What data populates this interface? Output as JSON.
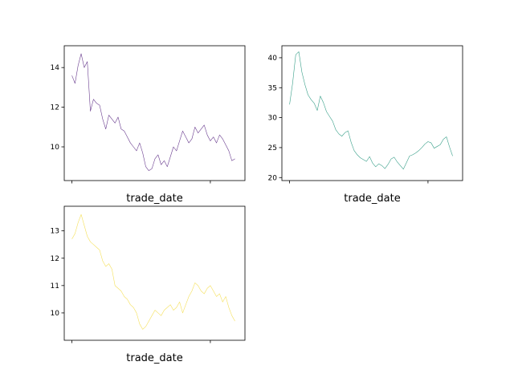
{
  "chart_data": [
    {
      "type": "line",
      "title": "",
      "xlabel": "trade_date",
      "ylabel": "",
      "xlim": [
        -10,
        225
      ],
      "ylim": [
        8.3,
        15.1
      ],
      "yticks": [
        10,
        12,
        14
      ],
      "xticks": [
        0,
        180
      ],
      "xtick_labels": [
        "",
        ""
      ],
      "grid": false,
      "color": "#6a3d8f",
      "series": [
        {
          "x": [
            0,
            4,
            8,
            12,
            16,
            20,
            24,
            28,
            32,
            36,
            40,
            44,
            48,
            52,
            56,
            60,
            64,
            68,
            72,
            76,
            80,
            84,
            88,
            92,
            96,
            100,
            104,
            108,
            112,
            116,
            120,
            124,
            128,
            132,
            136,
            140,
            144,
            148,
            152,
            156,
            160,
            164,
            168,
            172,
            176,
            180,
            184,
            188,
            192,
            196,
            200,
            204,
            208,
            212
          ],
          "y": [
            13.6,
            13.2,
            14.1,
            14.7,
            14.0,
            14.3,
            11.8,
            12.4,
            12.2,
            12.1,
            11.4,
            10.9,
            11.6,
            11.4,
            11.2,
            11.5,
            10.9,
            10.8,
            10.5,
            10.2,
            10.0,
            9.8,
            10.2,
            9.7,
            9.0,
            8.8,
            8.9,
            9.4,
            9.6,
            9.1,
            9.3,
            9.0,
            9.5,
            10.0,
            9.8,
            10.3,
            10.8,
            10.5,
            10.2,
            10.4,
            11.0,
            10.7,
            10.9,
            11.1,
            10.6,
            10.3,
            10.5,
            10.2,
            10.6,
            10.4,
            10.1,
            9.8,
            9.3,
            9.4
          ]
        }
      ]
    },
    {
      "type": "line",
      "title": "",
      "xlabel": "trade_date",
      "ylabel": "",
      "xlim": [
        -10,
        225
      ],
      "ylim": [
        19.5,
        42.0
      ],
      "yticks": [
        20,
        25,
        30,
        35,
        40
      ],
      "xticks": [
        0,
        180
      ],
      "xtick_labels": [
        "",
        ""
      ],
      "grid": false,
      "color": "#3aa08a",
      "series": [
        {
          "x": [
            0,
            4,
            8,
            12,
            16,
            20,
            24,
            28,
            32,
            36,
            40,
            44,
            48,
            52,
            56,
            60,
            64,
            68,
            72,
            76,
            80,
            84,
            88,
            92,
            96,
            100,
            104,
            108,
            112,
            116,
            120,
            124,
            128,
            132,
            136,
            140,
            144,
            148,
            152,
            156,
            160,
            164,
            168,
            172,
            176,
            180,
            184,
            188,
            192,
            196,
            200,
            204,
            208,
            212
          ],
          "y": [
            32.2,
            35.8,
            40.5,
            41.0,
            37.6,
            35.5,
            33.8,
            33.0,
            32.4,
            31.2,
            33.6,
            32.5,
            31.0,
            30.2,
            29.4,
            28.0,
            27.3,
            26.9,
            27.5,
            27.8,
            25.9,
            24.5,
            23.8,
            23.3,
            23.0,
            22.7,
            23.5,
            22.4,
            21.8,
            22.3,
            22.0,
            21.5,
            22.2,
            23.1,
            23.4,
            22.6,
            22.0,
            21.4,
            22.5,
            23.6,
            23.8,
            24.1,
            24.5,
            25.0,
            25.6,
            26.0,
            25.8,
            24.9,
            25.2,
            25.5,
            26.4,
            26.8,
            25.1,
            23.6
          ]
        }
      ]
    },
    {
      "type": "line",
      "title": "",
      "xlabel": "trade_date",
      "ylabel": "",
      "xlim": [
        -10,
        225
      ],
      "ylim": [
        9.0,
        13.9
      ],
      "yticks": [
        10,
        11,
        12,
        13
      ],
      "xticks": [
        0,
        180
      ],
      "xtick_labels": [
        "",
        ""
      ],
      "grid": false,
      "color": "#f5e05a",
      "series": [
        {
          "x": [
            0,
            4,
            8,
            12,
            16,
            20,
            24,
            28,
            32,
            36,
            40,
            44,
            48,
            52,
            56,
            60,
            64,
            68,
            72,
            76,
            80,
            84,
            88,
            92,
            96,
            100,
            104,
            108,
            112,
            116,
            120,
            124,
            128,
            132,
            136,
            140,
            144,
            148,
            152,
            156,
            160,
            164,
            168,
            172,
            176,
            180,
            184,
            188,
            192,
            196,
            200,
            204,
            208,
            212
          ],
          "y": [
            12.7,
            12.9,
            13.3,
            13.6,
            13.2,
            12.8,
            12.6,
            12.5,
            12.4,
            12.3,
            11.9,
            11.7,
            11.8,
            11.6,
            11.0,
            10.9,
            10.8,
            10.6,
            10.5,
            10.3,
            10.2,
            10.0,
            9.6,
            9.4,
            9.5,
            9.7,
            9.9,
            10.1,
            10.0,
            9.9,
            10.1,
            10.2,
            10.3,
            10.1,
            10.2,
            10.4,
            10.0,
            10.3,
            10.6,
            10.8,
            11.1,
            11.0,
            10.8,
            10.7,
            10.9,
            11.0,
            10.8,
            10.6,
            10.7,
            10.4,
            10.6,
            10.2,
            9.9,
            9.7
          ]
        }
      ]
    }
  ]
}
